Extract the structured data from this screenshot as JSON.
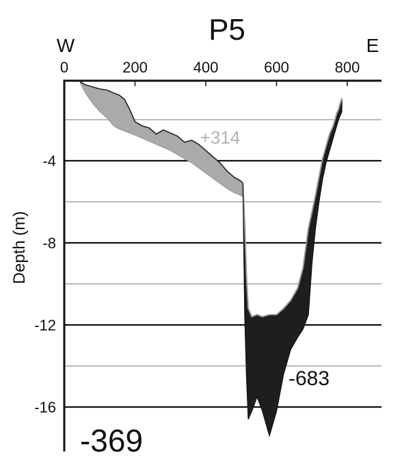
{
  "chart_data": {
    "type": "area",
    "title": "P5",
    "ylabel": "Depth (m)",
    "xlim": [
      0,
      900
    ],
    "ylim": [
      -17.5,
      0
    ],
    "x_ticks": [
      {
        "value": 0,
        "label": "0"
      },
      {
        "value": 200,
        "label": "200"
      },
      {
        "value": 400,
        "label": "400"
      },
      {
        "value": 600,
        "label": "600"
      },
      {
        "value": 800,
        "label": "800"
      }
    ],
    "y_ticks": [
      {
        "value": -4,
        "label": "-4"
      },
      {
        "value": -8,
        "label": "-8"
      },
      {
        "value": -12,
        "label": "-12"
      },
      {
        "value": -16,
        "label": "-16"
      }
    ],
    "grid_lines": [
      {
        "value": -2,
        "style": "thin"
      },
      {
        "value": -4,
        "style": "thick"
      },
      {
        "value": -6,
        "style": "thin"
      },
      {
        "value": -8,
        "style": "thick"
      },
      {
        "value": -10,
        "style": "thin"
      },
      {
        "value": -12,
        "style": "thick"
      },
      {
        "value": -14,
        "style": "thin"
      },
      {
        "value": -16,
        "style": "thick"
      }
    ],
    "direction_labels": {
      "west": "W",
      "east": "E"
    },
    "series": [
      {
        "role": "accretion",
        "color": "#aaaaaa",
        "outline": "#9a9a9a",
        "annotation": "+314",
        "annotation_color": "#b4b4b4",
        "x": [
          45,
          60,
          80,
          100,
          120,
          140,
          155,
          170,
          185,
          200,
          220,
          240,
          260,
          280,
          300,
          320,
          340,
          360,
          380,
          400,
          420,
          440,
          460,
          480,
          500,
          505
        ],
        "top": [
          -0.15,
          -0.3,
          -0.4,
          -0.5,
          -0.55,
          -0.7,
          -0.8,
          -1.0,
          -1.5,
          -2.1,
          -2.3,
          -2.4,
          -2.7,
          -2.5,
          -2.65,
          -2.8,
          -3.1,
          -3.0,
          -3.2,
          -3.5,
          -3.8,
          -4.1,
          -4.5,
          -4.8,
          -5.0,
          -5.1
        ],
        "bottom": [
          -0.2,
          -0.7,
          -1.2,
          -1.6,
          -1.9,
          -2.3,
          -2.45,
          -2.55,
          -2.65,
          -2.75,
          -2.9,
          -3.05,
          -3.2,
          -3.35,
          -3.5,
          -3.7,
          -3.9,
          -4.1,
          -4.35,
          -4.6,
          -4.85,
          -5.1,
          -5.35,
          -5.55,
          -5.7,
          -5.75
        ]
      },
      {
        "role": "erosion",
        "color": "#1e1e1e",
        "outline": "#1a1a1a",
        "annotation": "-683",
        "annotation_color": "#111111",
        "x": [
          505,
          510,
          515,
          520,
          530,
          545,
          560,
          580,
          600,
          620,
          640,
          660,
          675,
          690,
          700,
          710,
          720,
          730,
          740,
          750,
          760,
          770,
          775,
          780,
          785
        ],
        "top": [
          -5.1,
          -7.0,
          -9.6,
          -11.2,
          -11.6,
          -11.5,
          -11.6,
          -11.5,
          -11.5,
          -11.2,
          -10.8,
          -10.2,
          -9.2,
          -7.3,
          -6.5,
          -5.7,
          -4.8,
          -3.9,
          -3.3,
          -2.7,
          -2.3,
          -1.7,
          -1.5,
          -1.2,
          -0.95
        ],
        "bottom": [
          -5.1,
          -11.5,
          -14.5,
          -16.6,
          -16.2,
          -15.5,
          -16.2,
          -17.4,
          -16.2,
          -14.4,
          -13.2,
          -12.6,
          -12.2,
          -11.5,
          -9.0,
          -7.3,
          -6.0,
          -4.9,
          -4.1,
          -3.5,
          -2.9,
          -2.3,
          -2.0,
          -1.8,
          -1.6
        ]
      }
    ]
  },
  "labels": {
    "corner_value": "-369"
  }
}
